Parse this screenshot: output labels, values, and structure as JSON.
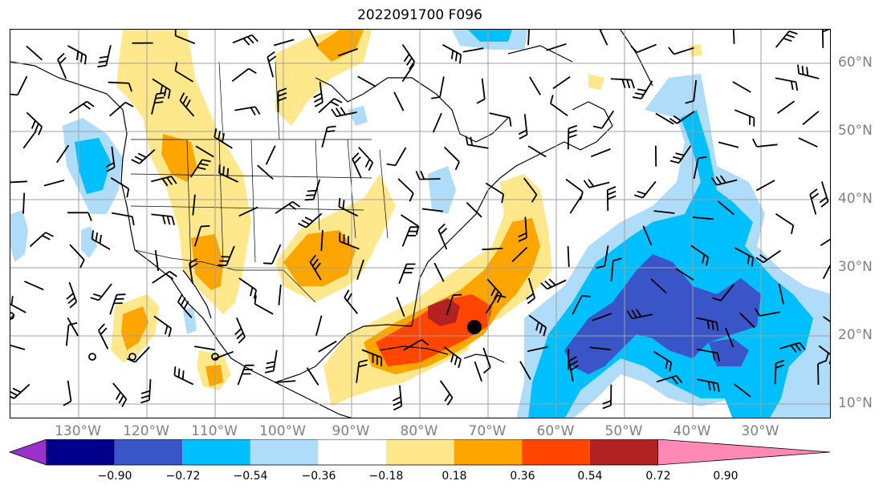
{
  "title": "2022091700 F096",
  "lon_labels": [
    "130°W",
    "120°W",
    "110°W",
    "100°W",
    "90°W",
    "80°W",
    "70°W",
    "60°W",
    "50°W",
    "40°W",
    "30°W"
  ],
  "lat_labels": [
    "60°N",
    "50°N",
    "40°N",
    "30°N",
    "20°N",
    "10°N"
  ],
  "colorbar": {
    "ticks": [
      "−0.90",
      "−0.72",
      "−0.54",
      "−0.36",
      "−0.18",
      "0.18",
      "0.36",
      "0.54",
      "0.72",
      "0.90"
    ],
    "colors": [
      "#9932cc",
      "#00008b",
      "#3a55c8",
      "#00bfff",
      "#afdcf8",
      "#ffffff",
      "#ffe88c",
      "#ffa500",
      "#ff4500",
      "#b22222",
      "#ff88b4"
    ]
  },
  "colors": {
    "coast": "#000000",
    "grid": "#a0a0a0",
    "label": "#808080"
  },
  "marker": "storm-center-dot"
}
